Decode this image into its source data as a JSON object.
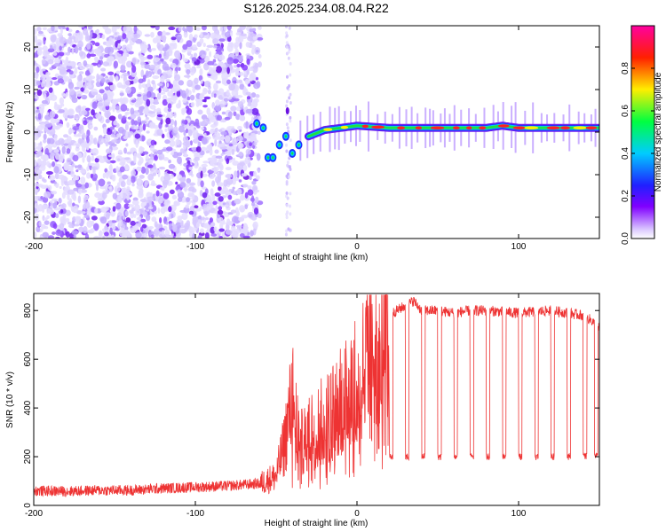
{
  "figure": {
    "title": "S126.2025.234.08.04.R22"
  },
  "chart_data": [
    {
      "type": "heatmap",
      "title": "S126.2025.234.08.04.R22",
      "xlabel": "Height of straight line (km)",
      "ylabel": "Frequency (Hz)",
      "xlim": [
        -200,
        150
      ],
      "ylim": [
        -25,
        25
      ],
      "xticks": [
        -200,
        -100,
        0,
        100
      ],
      "yticks": [
        -20,
        -10,
        0,
        10,
        20
      ],
      "colorbar": {
        "label": "Normalized spectral amplitude",
        "range": [
          0,
          1
        ],
        "ticks": [
          0.0,
          0.2,
          0.4,
          0.6,
          0.8
        ],
        "tick_labels": [
          "0.0",
          "0.2",
          "0.4",
          "0.6",
          "0.8"
        ],
        "colormap": "rainbow (white-violet-blue-cyan-green-yellow-red-magenta)"
      },
      "noise_region_x": [
        -200,
        -60
      ],
      "signal_track": {
        "x": [
          -62,
          -55,
          -50,
          -45,
          -40,
          -35,
          -30,
          -20,
          -10,
          0,
          20,
          40,
          60,
          80,
          90,
          100,
          120,
          150
        ],
        "frequency": [
          2,
          -6,
          -4,
          -3,
          -5,
          -2,
          -1,
          0.5,
          1,
          1.5,
          1,
          1,
          1,
          1,
          1.5,
          1,
          1,
          1
        ]
      }
    },
    {
      "type": "line",
      "title": "",
      "xlabel": "Height of straight line (km)",
      "ylabel": "SNR (10 * v/v)",
      "xlim": [
        -200,
        150
      ],
      "ylim": [
        0,
        870
      ],
      "xticks": [
        -200,
        -100,
        0,
        100
      ],
      "yticks": [
        0,
        200,
        400,
        600,
        800
      ],
      "series": [
        {
          "name": "SNR",
          "color": "#ee3333",
          "x": [
            -200,
            -180,
            -160,
            -140,
            -120,
            -100,
            -80,
            -70,
            -60,
            -50,
            -45,
            -40,
            -35,
            -30,
            -20,
            -10,
            0,
            5,
            10,
            20,
            22,
            30,
            35,
            40,
            50,
            60,
            70,
            80,
            90,
            100,
            110,
            120,
            130,
            140,
            145,
            150
          ],
          "values": [
            60,
            58,
            62,
            62,
            70,
            75,
            80,
            85,
            90,
            120,
            250,
            450,
            250,
            300,
            350,
            420,
            500,
            600,
            650,
            750,
            790,
            820,
            840,
            800,
            800,
            790,
            800,
            800,
            795,
            790,
            795,
            800,
            790,
            780,
            760,
            730
          ]
        }
      ],
      "dropouts": {
        "x": [
          20,
          30,
          40,
          50,
          60,
          70,
          80,
          90,
          100,
          110,
          120,
          130,
          140,
          147
        ],
        "floor": 200
      }
    }
  ]
}
